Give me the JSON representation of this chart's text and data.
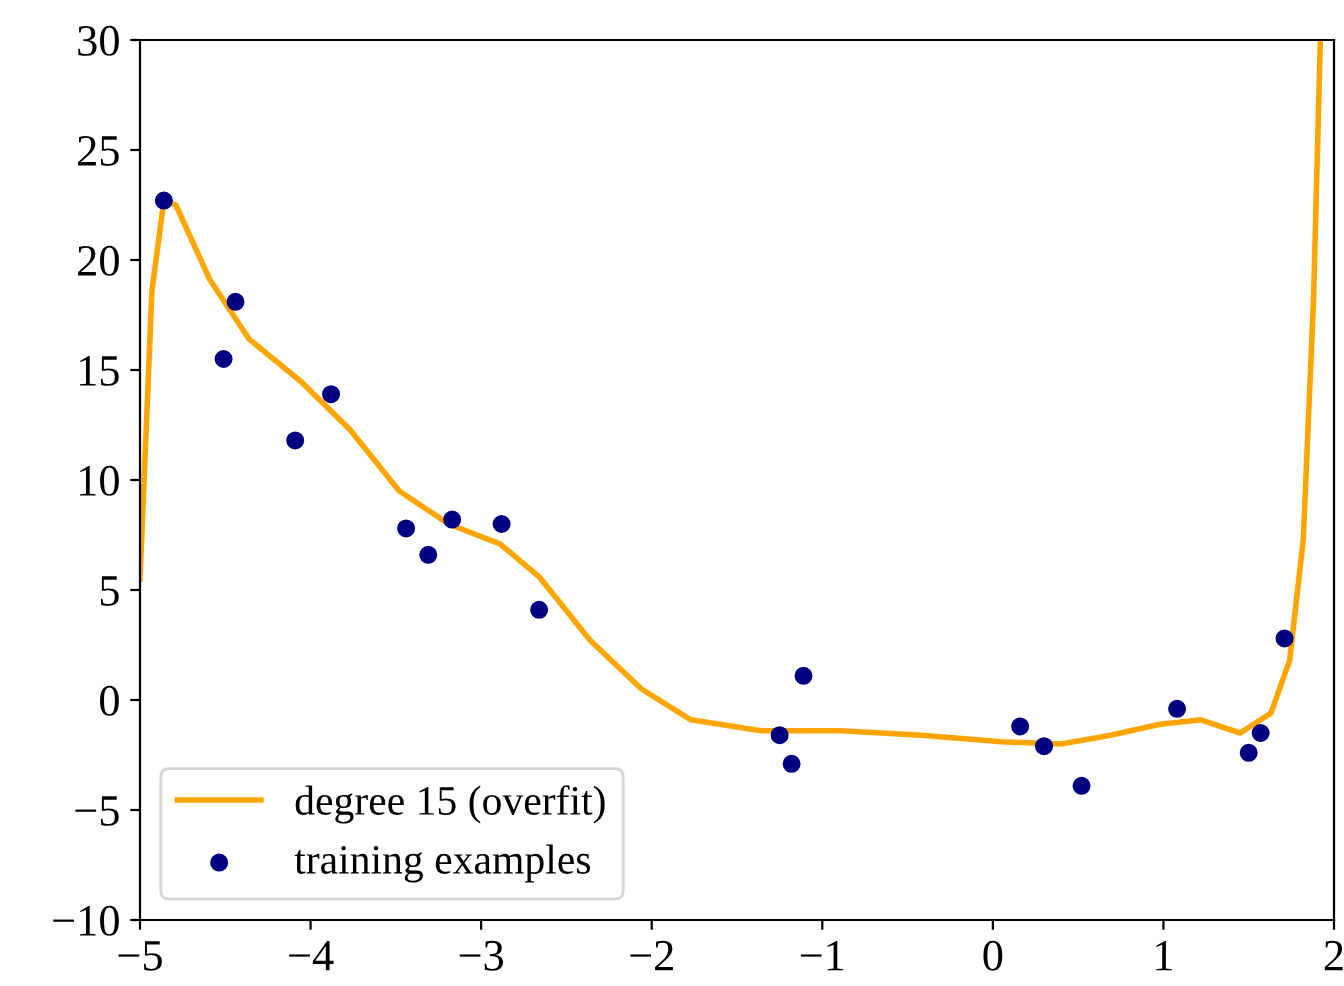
{
  "chart_data": {
    "type": "line",
    "xlim": [
      -5,
      2
    ],
    "ylim": [
      -10,
      30
    ],
    "xticks": [
      {
        "value": -5,
        "label": "−5"
      },
      {
        "value": -4,
        "label": "−4"
      },
      {
        "value": -3,
        "label": "−3"
      },
      {
        "value": -2,
        "label": "−2"
      },
      {
        "value": -1,
        "label": "−1"
      },
      0,
      1,
      2
    ],
    "yticks": [
      {
        "value": -10,
        "label": "−10"
      },
      {
        "value": -5,
        "label": "−5"
      },
      0,
      5,
      10,
      15,
      20,
      25,
      30
    ],
    "legend": "bottom left",
    "grid": false,
    "series": [
      {
        "name": "degree 15 (overfit)",
        "color": "#ffa500",
        "marker": "none",
        "line_style": "solid",
        "x": [
          -5,
          -4.93,
          -4.86,
          -4.79,
          -4.59,
          -4.36,
          -4.06,
          -3.77,
          -3.48,
          -3.19,
          -2.89,
          -2.66,
          -2.36,
          -2.06,
          -1.77,
          -1.36,
          -0.89,
          -0.42,
          0.05,
          0.4,
          0.69,
          0.98,
          1.22,
          1.45,
          1.63,
          1.74,
          1.82,
          1.88,
          1.92
        ],
        "values": [
          5.5,
          18.6,
          22.7,
          22.5,
          19.1,
          16.4,
          14.5,
          12.3,
          9.5,
          8.0,
          7.1,
          5.6,
          2.7,
          0.5,
          -0.9,
          -1.4,
          -1.4,
          -1.6,
          -1.9,
          -2.0,
          -1.6,
          -1.1,
          -0.9,
          -1.5,
          -0.6,
          1.8,
          7.3,
          18.2,
          30
        ]
      },
      {
        "name": "training examples",
        "type": "scatter",
        "color": "#000080",
        "marker": "circle",
        "x": [
          -4.86,
          -4.51,
          -4.44,
          -4.09,
          -3.88,
          -3.44,
          -3.31,
          -3.17,
          -2.88,
          -2.66,
          -1.25,
          -1.18,
          -1.11,
          0.16,
          0.3,
          0.52,
          1.08,
          1.5,
          1.57,
          1.71
        ],
        "values": [
          22.7,
          15.5,
          18.1,
          11.8,
          13.9,
          7.8,
          6.6,
          8.2,
          8.0,
          4.1,
          -1.6,
          -2.9,
          1.1,
          -1.2,
          -2.1,
          -3.9,
          -0.4,
          -2.4,
          -1.5,
          2.8
        ]
      }
    ]
  }
}
